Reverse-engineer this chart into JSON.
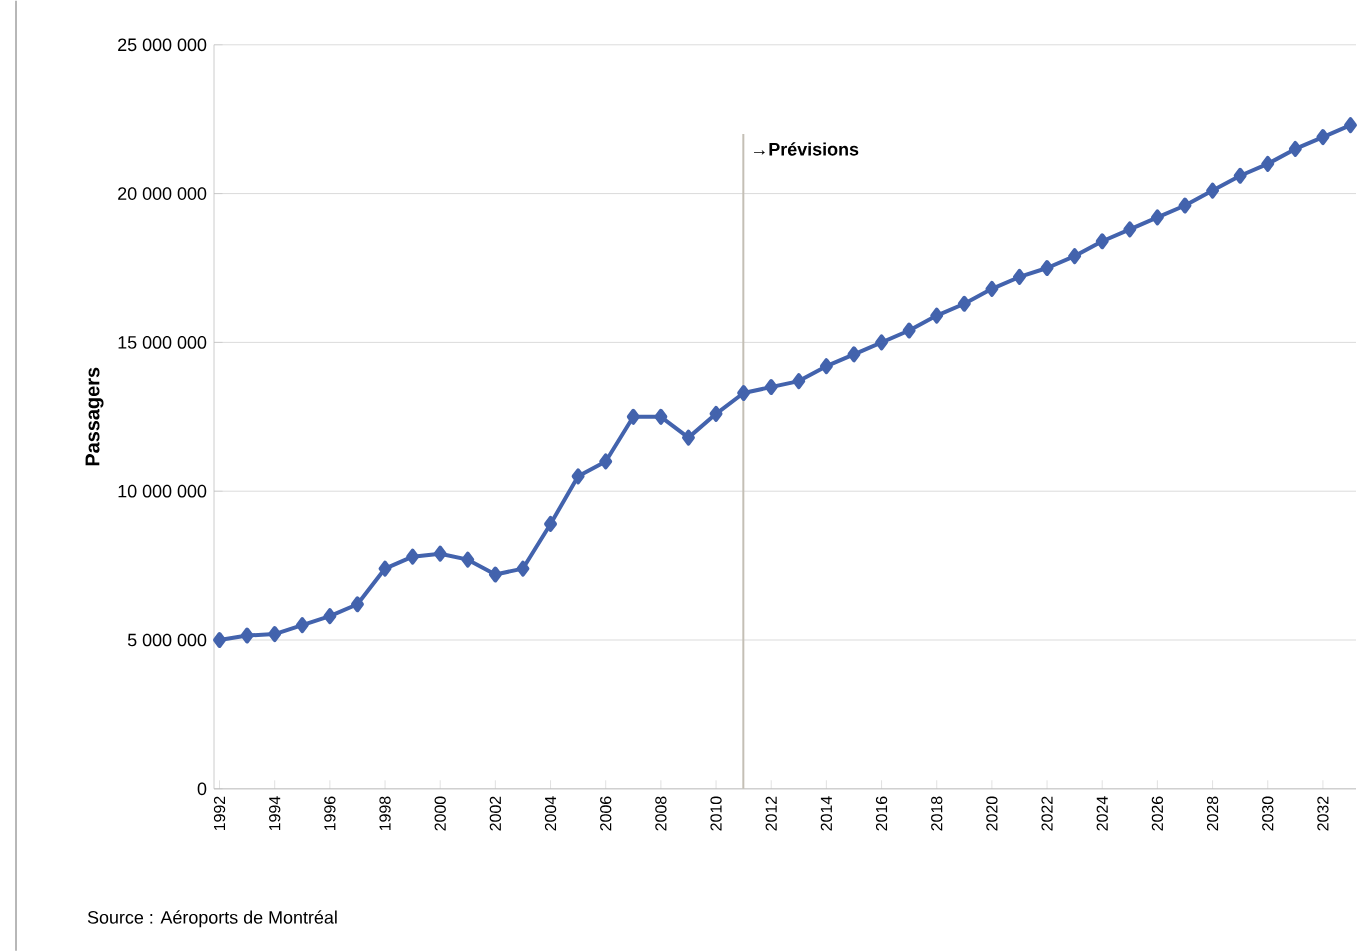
{
  "chart_data": {
    "type": "line",
    "ylabel": "Passagers",
    "categories": [
      "1992",
      null,
      "1994",
      null,
      "1996",
      null,
      "1998",
      null,
      "2000",
      null,
      "2002",
      null,
      "2004",
      null,
      "2006",
      null,
      "2008",
      null,
      "2010",
      null,
      "2012",
      null,
      "2014",
      null,
      "2016",
      null,
      "2018",
      null,
      "2020",
      null,
      "2022",
      null,
      "2024",
      null,
      "2026",
      null,
      "2028",
      null,
      "2030",
      null,
      "2032",
      null
    ],
    "series": [
      {
        "color": "#4363ad",
        "values": [
          5000000,
          5150000,
          5200000,
          5500000,
          5800000,
          6200000,
          7400000,
          7800000,
          7900000,
          7700000,
          7200000,
          7400000,
          8900000,
          10500000,
          11000000,
          12500000,
          12500000,
          11800000,
          12600000,
          13300000,
          13500000,
          13700000,
          14200000,
          14600000,
          15000000,
          15400000,
          15900000,
          16300000,
          16800000,
          17200000,
          17500000,
          17900000,
          18400000,
          18800000,
          19200000,
          19600000,
          20100000,
          20600000,
          21000000,
          21500000,
          21900000,
          22300000
        ]
      }
    ],
    "ylim": [
      0,
      25000000
    ],
    "yticks": [
      {
        "value": 0,
        "label": "0"
      },
      {
        "value": 5000000,
        "label": "5 000 000"
      },
      {
        "value": 10000000,
        "label": "10 000 000"
      },
      {
        "value": 15000000,
        "label": "15 000 000"
      },
      {
        "value": 20000000,
        "label": "20 000 000"
      },
      {
        "value": 25000000,
        "label": "25 000 000"
      }
    ],
    "annotations": [
      "→Prévisions",
      "Source : Aéroports de Montréal"
    ],
    "grid": "y",
    "marker": "diamond",
    "line_style": "solid"
  }
}
